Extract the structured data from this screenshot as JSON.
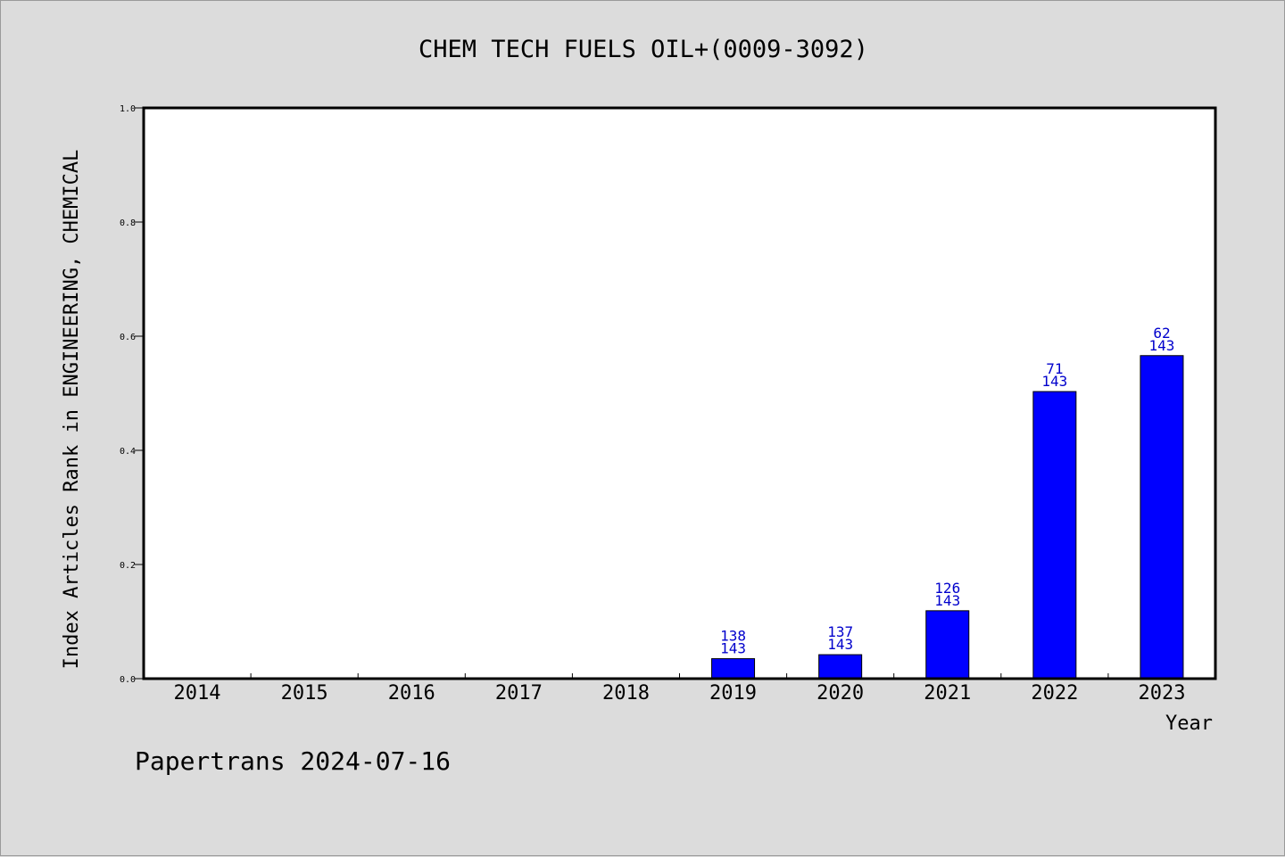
{
  "chart_data": {
    "type": "bar",
    "title": "CHEM TECH FUELS OIL+(0009-3092)",
    "xlabel": "Year",
    "ylabel": "Index Articles Rank in ENGINEERING, CHEMICAL",
    "ylim": [
      0,
      1.0
    ],
    "yticks": [
      "0.0",
      "0.2",
      "0.4",
      "0.6",
      "0.8",
      "1.0"
    ],
    "categories": [
      "2014",
      "2015",
      "2016",
      "2017",
      "2018",
      "2019",
      "2020",
      "2021",
      "2022",
      "2023"
    ],
    "values": [
      null,
      null,
      null,
      null,
      null,
      0.035,
      0.042,
      0.119,
      0.503,
      0.566
    ],
    "rank_labels": [
      "",
      "",
      "",
      "",
      "",
      "138",
      "137",
      "126",
      "71",
      "62"
    ],
    "total_labels": [
      "",
      "",
      "",
      "",
      "",
      "143",
      "143",
      "143",
      "143",
      "143"
    ],
    "bar_color": "#0000ff",
    "label_color": "#0000cc",
    "grid": false,
    "legend": "none"
  },
  "footer": "Papertrans 2024-07-16"
}
